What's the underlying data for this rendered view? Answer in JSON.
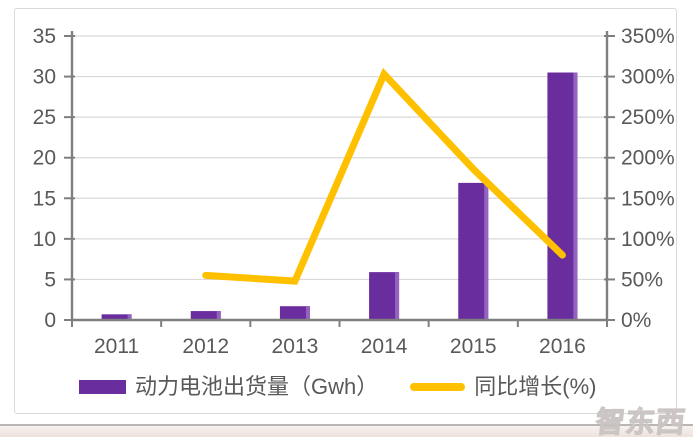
{
  "watermark": {
    "text": "智东西"
  },
  "colors": {
    "bar": "#6A2D9E",
    "bar_highlight": "#9463BF",
    "line": "#FFC000",
    "axis": "#7F7F7F",
    "grid": "#D9D9D9",
    "text": "#595959",
    "card_border": "#D9D9D9",
    "divider": "#B9B6B6",
    "watermark_outline": "#C9C4C2"
  },
  "chart_data": {
    "type": "bar+line",
    "title": "",
    "categories": [
      "2011",
      "2012",
      "2013",
      "2014",
      "2015",
      "2016"
    ],
    "series": [
      {
        "name": "动力电池出货量（Gwh）",
        "type": "bar",
        "axis": "left",
        "color": "#6A2D9E",
        "values": [
          0.7,
          1.1,
          1.7,
          5.9,
          16.9,
          30.5
        ]
      },
      {
        "name": "同比增长(%)",
        "type": "line",
        "axis": "right",
        "color": "#FFC000",
        "values": [
          null,
          55,
          48,
          303,
          186,
          80
        ]
      }
    ],
    "left_axis": {
      "min": 0,
      "max": 35,
      "step": 5,
      "tick_labels": [
        "0",
        "5",
        "10",
        "15",
        "20",
        "25",
        "30",
        "35"
      ]
    },
    "right_axis": {
      "min": 0,
      "max": 350,
      "step": 50,
      "tick_labels": [
        "0%",
        "50%",
        "100%",
        "150%",
        "200%",
        "250%",
        "300%",
        "350%"
      ]
    },
    "grid": true,
    "legend_position": "bottom"
  }
}
